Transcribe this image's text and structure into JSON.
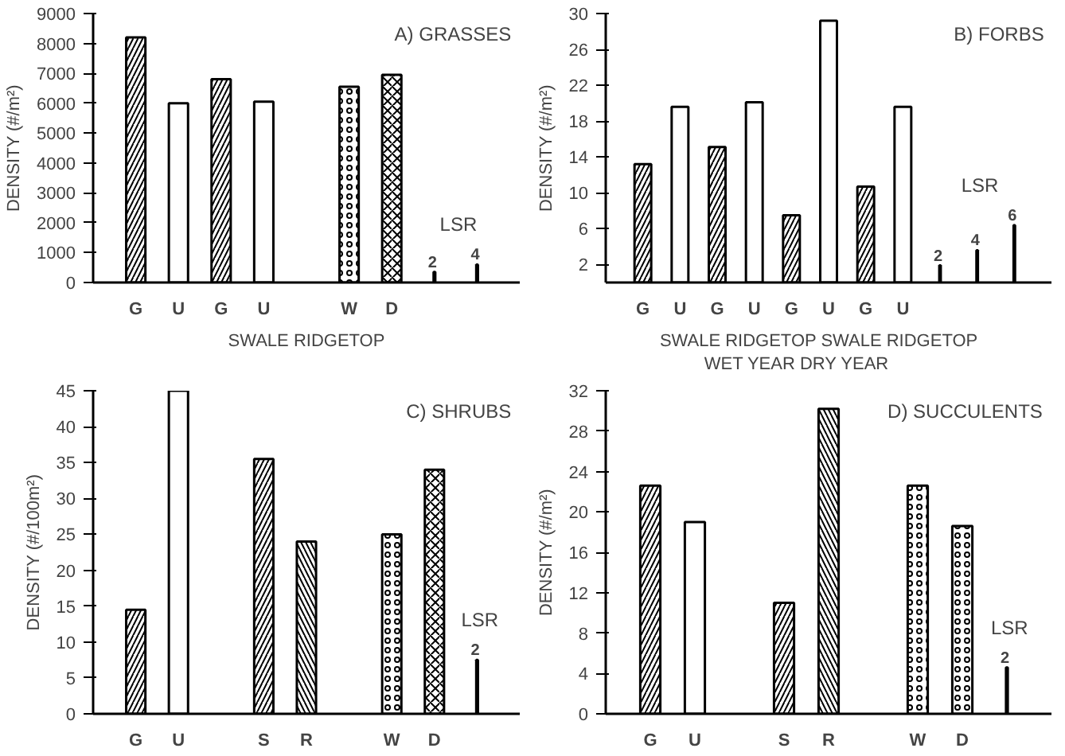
{
  "chart_data": [
    {
      "type": "bar",
      "title": "A) GRASSES",
      "ylabel": "DENSITY (#/m²)",
      "xlabel": "SWALE RIDGETOP",
      "categories": [
        "G",
        "U",
        "G",
        "U",
        null,
        "W",
        "D",
        null,
        null
      ],
      "series": [
        {
          "color": "#ffffff",
          "values": [
            8200,
            null,
            6800,
            null,
            null,
            null,
            null,
            null,
            null
          ]
        },
        {
          "color": "#ffffff",
          "values": [
            null,
            6000,
            null,
            6050,
            null,
            null,
            null,
            null,
            null
          ]
        },
        {
          "color": "#ffffff",
          "values": [
            null,
            null,
            null,
            null,
            null,
            6550,
            null,
            null,
            null
          ]
        },
        {
          "color": "#ffffff",
          "values": [
            null,
            null,
            null,
            null,
            null,
            null,
            6950,
            null,
            null
          ]
        },
        {
          "color": "#000000",
          "values": [
            null,
            null,
            null,
            null,
            null,
            null,
            null,
            350,
            600
          ]
        }
      ],
      "annotations": [
        "LSR",
        "2",
        "4"
      ],
      "ylim": [
        0,
        9000
      ],
      "yticks": [
        0,
        1000,
        2000,
        3000,
        4000,
        5000,
        6000,
        7000,
        8000,
        9000
      ]
    },
    {
      "type": "bar",
      "title": "B) FORBS",
      "ylabel": "DENSITY (#/m²)",
      "xlabel": "SWALE RIDGETOP     SWALE RIDGETOP\nWET YEAR              DRY YEAR",
      "categories": [
        "G",
        "U",
        "G",
        "U",
        "G",
        "U",
        "G",
        "U",
        null,
        null,
        null
      ],
      "series": [
        {
          "color": "#ffffff",
          "values": [
            13.2,
            null,
            15.1,
            null,
            7.5,
            null,
            10.7,
            null,
            null,
            null,
            null
          ]
        },
        {
          "color": "#ffffff",
          "values": [
            null,
            19.6,
            null,
            20.1,
            null,
            29.2,
            null,
            19.6,
            null,
            null,
            null
          ]
        },
        {
          "color": "#000000",
          "values": [
            null,
            null,
            null,
            null,
            null,
            null,
            null,
            null,
            1.9,
            3.6,
            6.4
          ]
        }
      ],
      "annotations": [
        "LSR",
        "2",
        "4",
        "6"
      ],
      "ylim": [
        0,
        30
      ],
      "yticks": [
        2,
        6,
        10,
        14,
        18,
        22,
        26,
        30
      ]
    },
    {
      "type": "bar",
      "title": "C) SHRUBS",
      "ylabel": "DENSITY (#/100m²)",
      "categories": [
        "G",
        "U",
        null,
        "S",
        "R",
        null,
        "W",
        "D",
        null
      ],
      "series": [
        {
          "color": "#ffffff",
          "values": [
            14.5,
            null,
            null,
            35.5,
            null,
            null,
            null,
            null,
            null
          ]
        },
        {
          "color": "#ffffff",
          "values": [
            null,
            45,
            null,
            null,
            null,
            null,
            null,
            null,
            null
          ]
        },
        {
          "color": "#ffffff",
          "values": [
            null,
            null,
            null,
            null,
            24,
            null,
            null,
            null,
            null
          ]
        },
        {
          "color": "#ffffff",
          "values": [
            null,
            null,
            null,
            null,
            null,
            null,
            25,
            null,
            null
          ]
        },
        {
          "color": "#ffffff",
          "values": [
            null,
            null,
            null,
            null,
            null,
            null,
            null,
            34,
            null
          ]
        },
        {
          "color": "#000000",
          "values": [
            null,
            null,
            null,
            null,
            null,
            null,
            null,
            null,
            7.5
          ]
        }
      ],
      "annotations": [
        "LSR",
        "2"
      ],
      "ylim": [
        0,
        45
      ],
      "yticks": [
        0,
        5,
        10,
        15,
        20,
        25,
        30,
        35,
        40,
        45
      ]
    },
    {
      "type": "bar",
      "title": "D) SUCCULENTS",
      "ylabel": "DENSITY (#/m²)",
      "categories": [
        "G",
        "U",
        null,
        "S",
        "R",
        null,
        "W",
        "D",
        null
      ],
      "series": [
        {
          "color": "#ffffff",
          "values": [
            22.6,
            null,
            null,
            11,
            null,
            null,
            null,
            null,
            null
          ]
        },
        {
          "color": "#ffffff",
          "values": [
            null,
            19,
            null,
            null,
            null,
            null,
            null,
            null,
            null
          ]
        },
        {
          "color": "#ffffff",
          "values": [
            null,
            null,
            null,
            null,
            30.2,
            null,
            null,
            null,
            null
          ]
        },
        {
          "color": "#ffffff",
          "values": [
            null,
            null,
            null,
            null,
            null,
            null,
            22.6,
            null,
            null
          ]
        },
        {
          "color": "#ffffff",
          "values": [
            null,
            null,
            null,
            null,
            null,
            null,
            null,
            18.6,
            null
          ]
        },
        {
          "color": "#000000",
          "values": [
            null,
            null,
            null,
            null,
            null,
            null,
            null,
            null,
            4.6
          ]
        }
      ],
      "annotations": [
        "LSR",
        "2"
      ],
      "ylim": [
        0,
        32
      ],
      "yticks": [
        0,
        4,
        8,
        12,
        16,
        20,
        24,
        28,
        32
      ]
    }
  ]
}
